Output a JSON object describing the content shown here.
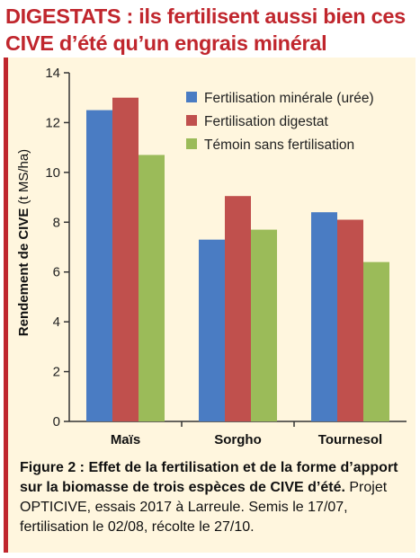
{
  "headline": "DIGESTATS : ils fertilisent aussi bien ces CIVE d’été qu’un engrais minéral",
  "chart_data": {
    "type": "bar",
    "categories": [
      "Maïs",
      "Sorgho",
      "Tournesol"
    ],
    "series": [
      {
        "name": "Fertilisation minérale (urée)",
        "color": "#4a7cc3",
        "values": [
          12.5,
          7.3,
          8.4
        ]
      },
      {
        "name": "Fertilisation digestat",
        "color": "#c0504d",
        "values": [
          13.0,
          9.05,
          8.1
        ]
      },
      {
        "name": "Témoin sans fertilisation",
        "color": "#9bbb59",
        "values": [
          10.7,
          7.7,
          6.4
        ]
      }
    ],
    "ylabel_bold": "Rendement de CIVE",
    "ylabel_unit": "(t MS/ha)",
    "ylim": [
      0,
      14
    ],
    "yticks": [
      0,
      2,
      4,
      6,
      8,
      10,
      12,
      14
    ],
    "legend_position": "top-right",
    "grid": false
  },
  "caption": {
    "bold": "Figure 2 : Effet de la fertilisation et de la forme d’apport sur la biomasse de trois espèces de CIVE d’été.",
    "normal": " Projet OPTICIVE, essais 2017 à Larreule. Semis le 17/07, fertilisation le 02/08, récolte le 27/10."
  }
}
